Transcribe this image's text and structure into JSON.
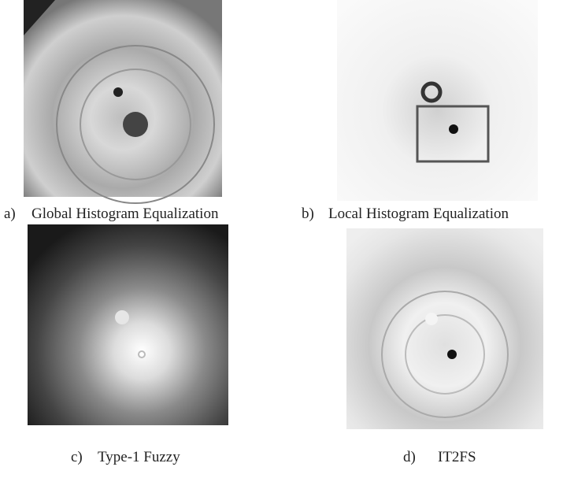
{
  "figure": {
    "panels": [
      {
        "label": "a)",
        "caption": "Global Histogram Equalization"
      },
      {
        "label": "b)",
        "caption": "Local Histogram Equalization"
      },
      {
        "label": "c)",
        "caption": "Type-1 Fuzzy"
      },
      {
        "label": "d)",
        "caption": "IT2FS"
      }
    ]
  }
}
